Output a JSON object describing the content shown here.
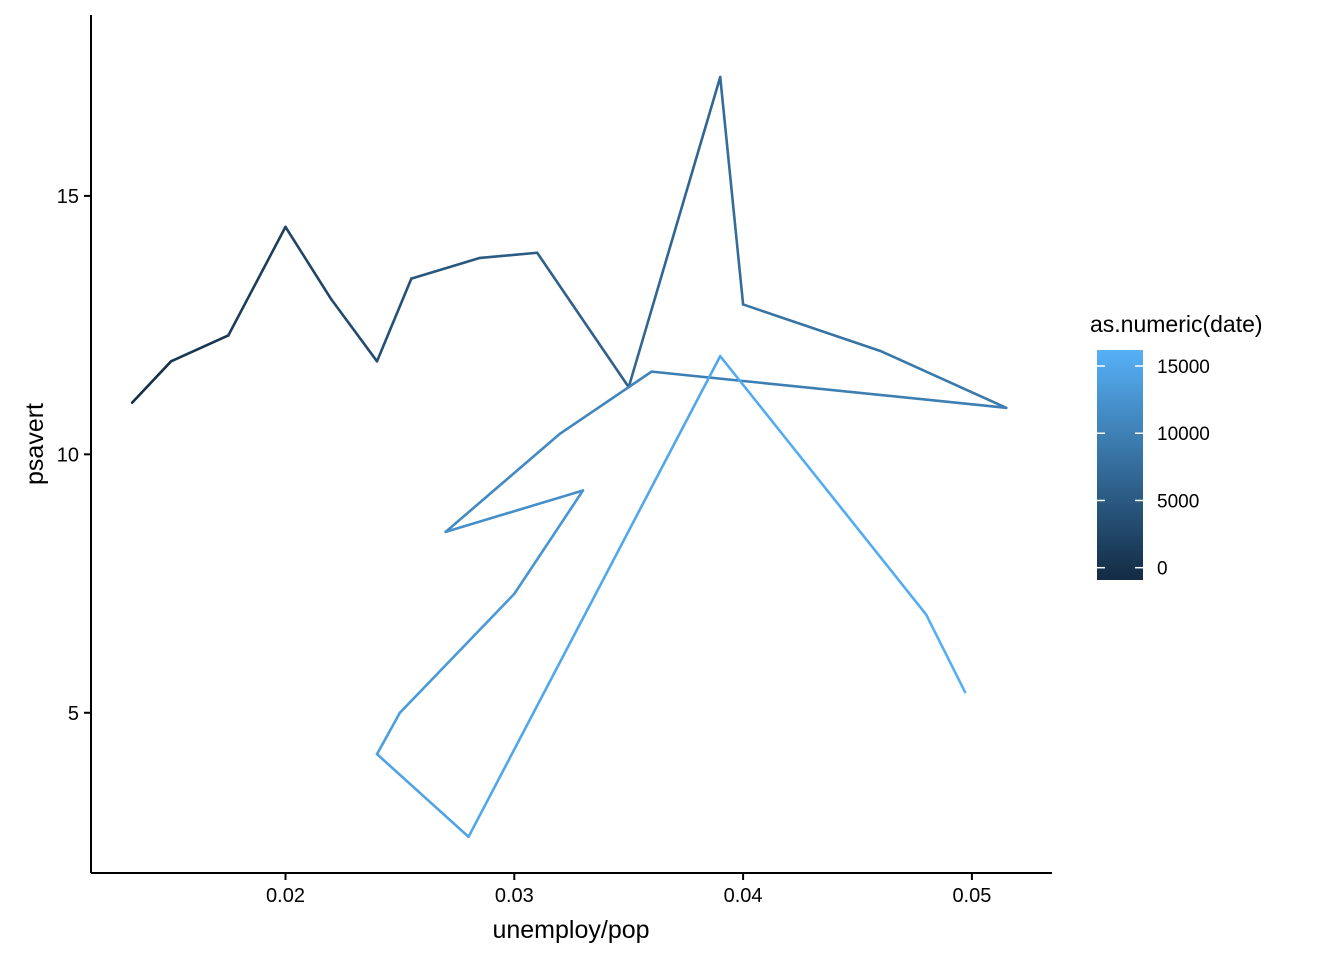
{
  "chart_data": {
    "type": "line",
    "xlabel": "unemploy/pop",
    "ylabel": "psavert",
    "xlim": [
      0.0115,
      0.0535
    ],
    "ylim": [
      1.9,
      18.5
    ],
    "x_ticks": [
      0.02,
      0.03,
      0.04,
      0.05
    ],
    "x_tick_labels": [
      "0.02",
      "0.03",
      "0.04",
      "0.05"
    ],
    "y_ticks": [
      5,
      10,
      15
    ],
    "y_tick_labels": [
      "5",
      "10",
      "15"
    ],
    "grid": false,
    "color": {
      "variable": "as.numeric(date)",
      "range": [
        -915,
        16191
      ],
      "low_color": "#132B43",
      "high_color": "#56B1F7"
    },
    "legend": {
      "title": "as.numeric(date)",
      "position": "right",
      "breaks": [
        0,
        5000,
        10000,
        15000
      ],
      "labels": [
        "0",
        "5000",
        "10000",
        "15000"
      ]
    },
    "series": [
      {
        "t": [
          -915,
          0,
          1000,
          2000,
          2800,
          3500,
          4300,
          5000,
          5600,
          6200,
          7000,
          7800,
          8700,
          9300,
          10200,
          10900,
          11600,
          12200,
          13000,
          13500,
          14000,
          14600,
          15200,
          15800,
          16191
        ],
        "x": [
          0.0133,
          0.015,
          0.0175,
          0.02,
          0.022,
          0.024,
          0.0255,
          0.0285,
          0.031,
          0.035,
          0.039,
          0.04,
          0.046,
          0.0515,
          0.036,
          0.032,
          0.027,
          0.033,
          0.03,
          0.025,
          0.024,
          0.028,
          0.039,
          0.048,
          0.0497
        ],
        "y": [
          11.0,
          11.8,
          12.3,
          14.4,
          13.0,
          11.8,
          13.4,
          13.8,
          13.9,
          11.3,
          17.3,
          12.9,
          12.0,
          10.9,
          11.6,
          10.4,
          8.5,
          9.3,
          7.3,
          5.0,
          4.2,
          2.6,
          11.9,
          6.9,
          5.4
        ]
      }
    ]
  }
}
